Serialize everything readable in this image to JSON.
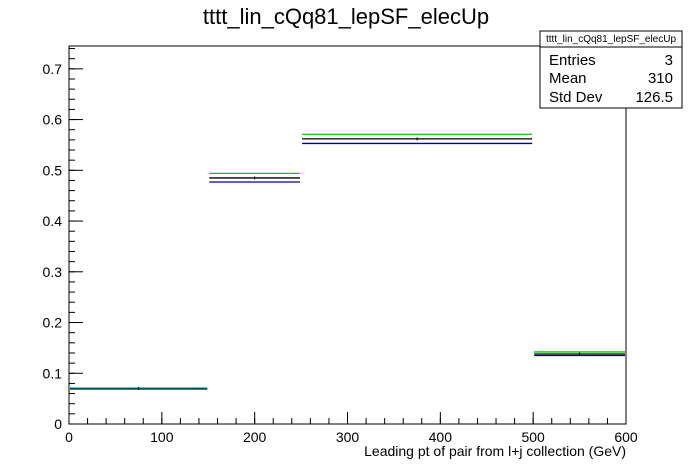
{
  "chart_data": {
    "type": "step-histogram",
    "title": "tttt_lin_cQq81_lepSF_elecUp",
    "xlabel": "Leading pt of pair from l+j collection (GeV)",
    "ylabel": "",
    "xlim": [
      0,
      600
    ],
    "ylim": [
      0,
      0.745
    ],
    "x_ticks": [
      0,
      100,
      200,
      300,
      400,
      500,
      600
    ],
    "y_ticks": [
      0,
      0.1,
      0.2,
      0.3,
      0.4,
      0.5,
      0.6,
      0.7
    ],
    "bin_edges": [
      0,
      150,
      250,
      500,
      600
    ],
    "series": [
      {
        "color": "#000000",
        "values": [
          0.07,
          0.485,
          0.562,
          0.138
        ]
      },
      {
        "color": "#00cc00",
        "values": [
          0.071,
          0.494,
          0.571,
          0.142
        ]
      },
      {
        "color": "#000099",
        "values": [
          0.069,
          0.477,
          0.553,
          0.135
        ]
      }
    ],
    "stats": {
      "name": "tttt_lin_cQq81_lepSF_elecUp",
      "rows": [
        {
          "label": "Entries",
          "value": "3"
        },
        {
          "label": "Mean",
          "value": "310"
        },
        {
          "label": "Std Dev",
          "value": "126.5"
        }
      ]
    },
    "grid": false,
    "legend": "none"
  }
}
